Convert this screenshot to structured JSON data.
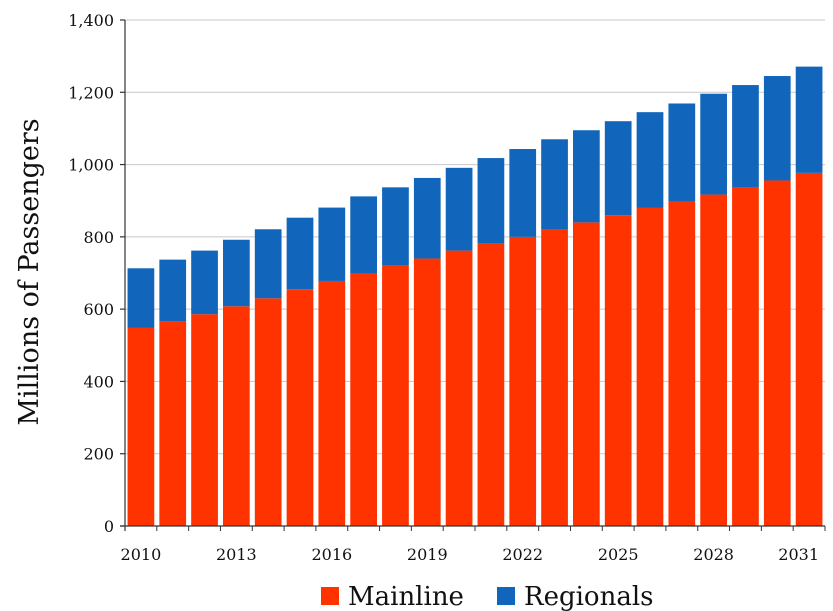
{
  "chart_data": {
    "type": "bar",
    "stacked": true,
    "title": "",
    "xlabel": "",
    "ylabel": "Millions of Passengers",
    "ylim": [
      0,
      1400
    ],
    "yticks": [
      0,
      200,
      400,
      600,
      800,
      1000,
      1200,
      1400
    ],
    "ytick_labels": [
      "0",
      "200",
      "400",
      "600",
      "800",
      "1,000",
      "1,200",
      "1,400"
    ],
    "categories": [
      "2010",
      "2011",
      "2012",
      "2013",
      "2014",
      "2015",
      "2016",
      "2017",
      "2018",
      "2019",
      "2020",
      "2021",
      "2022",
      "2023",
      "2024",
      "2025",
      "2026",
      "2027",
      "2028",
      "2029",
      "2030",
      "2031"
    ],
    "xtick_labels": [
      "2010",
      "2013",
      "2016",
      "2019",
      "2022",
      "2025",
      "2028",
      "2031"
    ],
    "grid": "horizontal",
    "legend_position": "bottom",
    "series": [
      {
        "name": "Mainline",
        "color": "#ff3300",
        "values": [
          548,
          567,
          586,
          608,
          630,
          655,
          678,
          700,
          720,
          740,
          762,
          781,
          800,
          820,
          840,
          860,
          880,
          898,
          917,
          936,
          956,
          977
        ]
      },
      {
        "name": "Regionals",
        "color": "#1166bb",
        "values": [
          165,
          170,
          176,
          184,
          191,
          198,
          203,
          212,
          217,
          223,
          229,
          237,
          243,
          250,
          255,
          260,
          265,
          271,
          279,
          284,
          289,
          294
        ]
      }
    ]
  }
}
